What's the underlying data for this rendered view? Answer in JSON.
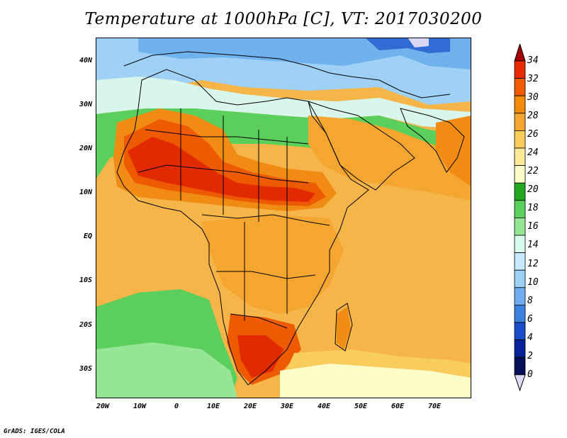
{
  "title": "Temperature at 1000hPa [C], VT: 2017030200",
  "footer": "GrADS: IGES/COLA",
  "map": {
    "lat_labels": [
      "40N",
      "30N",
      "20N",
      "10N",
      "EQ",
      "10S",
      "20S",
      "30S"
    ],
    "lon_labels": [
      "20W",
      "10W",
      "0",
      "10E",
      "20E",
      "30E",
      "40E",
      "50E",
      "60E",
      "70E"
    ]
  },
  "colorbar": {
    "ticks": [
      "34",
      "32",
      "30",
      "28",
      "26",
      "24",
      "22",
      "20",
      "18",
      "16",
      "14",
      "12",
      "10",
      "8",
      "6",
      "4",
      "2",
      "0"
    ],
    "colors": [
      "#a50000",
      "#e82a00",
      "#f05a00",
      "#f28a0a",
      "#f5a631",
      "#f8cd5c",
      "#fbeb98",
      "#fefec8",
      "#22a722",
      "#5ad15a",
      "#96e696",
      "#d8f9ec",
      "#c8e8fc",
      "#9cd2f8",
      "#6eaef0",
      "#3c83e0",
      "#1a4ec8",
      "#08239a",
      "#04105a",
      "#dcdcf8"
    ]
  },
  "legend_levels": [
    "22",
    "20",
    "18",
    "16"
  ]
}
